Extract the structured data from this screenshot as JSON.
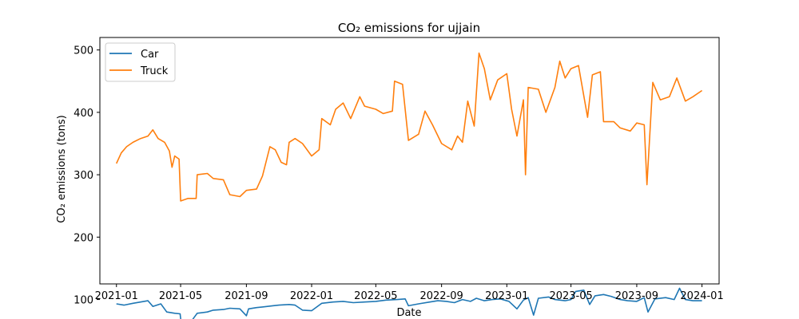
{
  "chart_data": {
    "type": "line",
    "title": "CO₂ emissions for ujjain",
    "xlabel": "Date",
    "ylabel": "CO₂ emissions (tons)",
    "xlim": [
      "2020-12-01",
      "2024-02-02"
    ],
    "ylim": [
      125,
      520
    ],
    "x_ticks": [
      "2021-01",
      "2021-05",
      "2021-09",
      "2022-01",
      "2022-05",
      "2022-09",
      "2023-01",
      "2023-05",
      "2023-09",
      "2024-01"
    ],
    "y_ticks": [
      100,
      200,
      300,
      400,
      500
    ],
    "legend_position": "top-left",
    "grid": false,
    "series": [
      {
        "name": "Car",
        "color": "#1f77b4",
        "points": [
          [
            "2021-01-01",
            93
          ],
          [
            "2021-01-15",
            91
          ],
          [
            "2021-02-01",
            94
          ],
          [
            "2021-02-15",
            96
          ],
          [
            "2021-03-01",
            98
          ],
          [
            "2021-03-10",
            89
          ],
          [
            "2021-03-25",
            93
          ],
          [
            "2021-04-05",
            80
          ],
          [
            "2021-04-20",
            78
          ],
          [
            "2021-04-30",
            77
          ],
          [
            "2021-05-02",
            63
          ],
          [
            "2021-05-20",
            64
          ],
          [
            "2021-06-01",
            78
          ],
          [
            "2021-06-20",
            80
          ],
          [
            "2021-07-01",
            83
          ],
          [
            "2021-07-20",
            84
          ],
          [
            "2021-08-01",
            86
          ],
          [
            "2021-08-20",
            85
          ],
          [
            "2021-09-01",
            74
          ],
          [
            "2021-09-05",
            85
          ],
          [
            "2021-09-20",
            87
          ],
          [
            "2021-10-01",
            88
          ],
          [
            "2021-10-20",
            90
          ],
          [
            "2021-11-01",
            91
          ],
          [
            "2021-11-20",
            92
          ],
          [
            "2021-12-01",
            91
          ],
          [
            "2021-12-15",
            83
          ],
          [
            "2022-01-01",
            82
          ],
          [
            "2022-01-20",
            94
          ],
          [
            "2022-02-10",
            96
          ],
          [
            "2022-03-01",
            97
          ],
          [
            "2022-03-20",
            95
          ],
          [
            "2022-04-10",
            96
          ],
          [
            "2022-05-01",
            97
          ],
          [
            "2022-05-20",
            99
          ],
          [
            "2022-06-10",
            100
          ],
          [
            "2022-06-25",
            101
          ],
          [
            "2022-07-01",
            90
          ],
          [
            "2022-07-20",
            93
          ],
          [
            "2022-08-10",
            96
          ],
          [
            "2022-08-25",
            98
          ],
          [
            "2022-09-10",
            97
          ],
          [
            "2022-09-25",
            95
          ],
          [
            "2022-10-10",
            100
          ],
          [
            "2022-10-25",
            97
          ],
          [
            "2022-11-05",
            102
          ],
          [
            "2022-11-20",
            98
          ],
          [
            "2022-12-05",
            100
          ],
          [
            "2022-12-20",
            101
          ],
          [
            "2023-01-05",
            97
          ],
          [
            "2023-01-20",
            85
          ],
          [
            "2023-02-01",
            99
          ],
          [
            "2023-02-10",
            103
          ],
          [
            "2023-02-20",
            75
          ],
          [
            "2023-03-01",
            102
          ],
          [
            "2023-03-20",
            104
          ],
          [
            "2023-04-01",
            100
          ],
          [
            "2023-04-20",
            98
          ],
          [
            "2023-05-01",
            100
          ],
          [
            "2023-05-10",
            113
          ],
          [
            "2023-05-25",
            115
          ],
          [
            "2023-06-05",
            92
          ],
          [
            "2023-06-15",
            106
          ],
          [
            "2023-07-01",
            108
          ],
          [
            "2023-07-15",
            105
          ],
          [
            "2023-08-01",
            100
          ],
          [
            "2023-08-15",
            98
          ],
          [
            "2023-09-01",
            97
          ],
          [
            "2023-09-15",
            103
          ],
          [
            "2023-09-22",
            80
          ],
          [
            "2023-10-05",
            101
          ],
          [
            "2023-10-25",
            103
          ],
          [
            "2023-11-10",
            100
          ],
          [
            "2023-11-20",
            118
          ],
          [
            "2023-12-01",
            100
          ],
          [
            "2023-12-15",
            98
          ],
          [
            "2024-01-01",
            98
          ]
        ]
      },
      {
        "name": "Truck",
        "color": "#ff7f0e",
        "points": [
          [
            "2021-01-01",
            318
          ],
          [
            "2021-01-10",
            335
          ],
          [
            "2021-01-20",
            345
          ],
          [
            "2021-02-01",
            352
          ],
          [
            "2021-02-15",
            358
          ],
          [
            "2021-03-01",
            362
          ],
          [
            "2021-03-10",
            372
          ],
          [
            "2021-03-20",
            358
          ],
          [
            "2021-04-01",
            352
          ],
          [
            "2021-04-10",
            338
          ],
          [
            "2021-04-15",
            312
          ],
          [
            "2021-04-20",
            330
          ],
          [
            "2021-04-28",
            325
          ],
          [
            "2021-05-01",
            258
          ],
          [
            "2021-05-15",
            262
          ],
          [
            "2021-05-30",
            262
          ],
          [
            "2021-06-01",
            300
          ],
          [
            "2021-06-20",
            302
          ],
          [
            "2021-07-01",
            294
          ],
          [
            "2021-07-20",
            292
          ],
          [
            "2021-08-01",
            268
          ],
          [
            "2021-08-20",
            265
          ],
          [
            "2021-09-01",
            275
          ],
          [
            "2021-09-20",
            277
          ],
          [
            "2021-10-01",
            298
          ],
          [
            "2021-10-15",
            345
          ],
          [
            "2021-10-25",
            340
          ],
          [
            "2021-11-05",
            320
          ],
          [
            "2021-11-15",
            316
          ],
          [
            "2021-11-20",
            352
          ],
          [
            "2021-12-01",
            358
          ],
          [
            "2021-12-15",
            350
          ],
          [
            "2022-01-01",
            330
          ],
          [
            "2022-01-15",
            340
          ],
          [
            "2022-01-20",
            390
          ],
          [
            "2022-02-05",
            380
          ],
          [
            "2022-02-15",
            405
          ],
          [
            "2022-03-01",
            415
          ],
          [
            "2022-03-15",
            390
          ],
          [
            "2022-04-01",
            425
          ],
          [
            "2022-04-10",
            410
          ],
          [
            "2022-05-01",
            405
          ],
          [
            "2022-05-15",
            398
          ],
          [
            "2022-06-01",
            402
          ],
          [
            "2022-06-05",
            450
          ],
          [
            "2022-06-20",
            445
          ],
          [
            "2022-07-01",
            355
          ],
          [
            "2022-07-20",
            365
          ],
          [
            "2022-08-01",
            402
          ],
          [
            "2022-08-15",
            380
          ],
          [
            "2022-09-01",
            350
          ],
          [
            "2022-09-20",
            340
          ],
          [
            "2022-10-01",
            362
          ],
          [
            "2022-10-10",
            352
          ],
          [
            "2022-10-20",
            418
          ],
          [
            "2022-11-01",
            378
          ],
          [
            "2022-11-10",
            495
          ],
          [
            "2022-11-20",
            470
          ],
          [
            "2022-12-01",
            420
          ],
          [
            "2022-12-15",
            452
          ],
          [
            "2023-01-01",
            462
          ],
          [
            "2023-01-10",
            405
          ],
          [
            "2023-01-20",
            362
          ],
          [
            "2023-02-01",
            420
          ],
          [
            "2023-02-05",
            300
          ],
          [
            "2023-02-10",
            440
          ],
          [
            "2023-03-01",
            437
          ],
          [
            "2023-03-15",
            400
          ],
          [
            "2023-04-01",
            440
          ],
          [
            "2023-04-10",
            482
          ],
          [
            "2023-04-20",
            455
          ],
          [
            "2023-05-01",
            470
          ],
          [
            "2023-05-15",
            475
          ],
          [
            "2023-06-01",
            392
          ],
          [
            "2023-06-10",
            460
          ],
          [
            "2023-06-25",
            465
          ],
          [
            "2023-07-01",
            385
          ],
          [
            "2023-07-20",
            385
          ],
          [
            "2023-08-01",
            375
          ],
          [
            "2023-08-20",
            370
          ],
          [
            "2023-09-01",
            383
          ],
          [
            "2023-09-15",
            380
          ],
          [
            "2023-09-20",
            284
          ],
          [
            "2023-10-01",
            448
          ],
          [
            "2023-10-15",
            420
          ],
          [
            "2023-11-01",
            425
          ],
          [
            "2023-11-15",
            455
          ],
          [
            "2023-12-01",
            418
          ],
          [
            "2023-12-15",
            425
          ],
          [
            "2024-01-01",
            435
          ]
        ]
      }
    ]
  }
}
